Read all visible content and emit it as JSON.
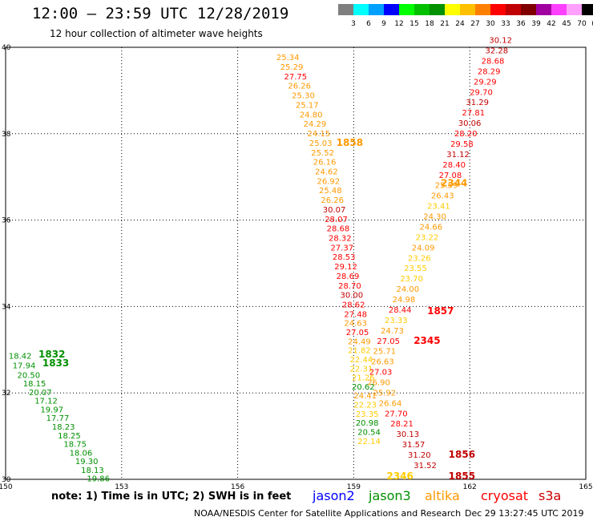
{
  "header": {
    "title": "12:00 – 23:59 UTC 12/28/2019",
    "subtitle": "12 hour collection of altimeter wave heights"
  },
  "legend_scale": {
    "labels": [
      "3",
      "6",
      "9",
      "12",
      "15",
      "18",
      "21",
      "24",
      "27",
      "30",
      "33",
      "36",
      "39",
      "42",
      "45",
      "70",
      "(ft)"
    ],
    "colors": [
      "#7f7f7f",
      "#00ffff",
      "#00a0ff",
      "#0000ff",
      "#00ff00",
      "#00c000",
      "#009000",
      "#ffff00",
      "#ffc000",
      "#ff8000",
      "#ff0000",
      "#c00000",
      "#800000",
      "#a000a0",
      "#ff40ff",
      "#ffa0ff",
      "#000000"
    ]
  },
  "bottom": {
    "note": "note:  1) Time is in UTC;  2) SWH is in feet",
    "satellites": [
      {
        "name": "jason2",
        "color": "#0000ff"
      },
      {
        "name": "jason3",
        "color": "#009000"
      },
      {
        "name": "altika",
        "color": "#ff9900"
      },
      {
        "name": "cryosat",
        "color": "#ff0000"
      },
      {
        "name": "s3a",
        "color": "#cc0000"
      }
    ],
    "credit": "NOAA/NESDIS Center for Satellite Applications and Research",
    "timestamp": "Dec 29 13:27:45 UTC 2019"
  },
  "chart_data": {
    "type": "scatter",
    "xlim": [
      150,
      165
    ],
    "ylim": [
      30,
      40
    ],
    "x_ticks": [
      "150",
      "153",
      "156",
      "159",
      "162",
      "165"
    ],
    "y_ticks": [
      "30",
      "32",
      "34",
      "36",
      "38",
      "40"
    ],
    "grid": true,
    "color_scale": {
      "thresholds": [
        21,
        24,
        27,
        30,
        33
      ],
      "colors": [
        "#009000",
        "#ffcc00",
        "#ff9900",
        "#ff0000",
        "#c00000"
      ]
    },
    "tracks": [
      {
        "values": [
          [
            150.08,
            32.79,
            18.42
          ],
          [
            150.18,
            32.57,
            17.94
          ],
          [
            150.3,
            32.35,
            20.5
          ],
          [
            150.45,
            32.15,
            18.15
          ],
          [
            150.6,
            31.95,
            20.07
          ],
          [
            150.75,
            31.75,
            17.12
          ],
          [
            150.9,
            31.55,
            19.97
          ],
          [
            151.05,
            31.35,
            17.77
          ],
          [
            151.2,
            31.15,
            18.23
          ],
          [
            151.35,
            30.95,
            18.25
          ],
          [
            151.5,
            30.75,
            18.75
          ],
          [
            151.65,
            30.55,
            18.06
          ],
          [
            151.8,
            30.35,
            19.3
          ],
          [
            151.95,
            30.15,
            18.13
          ],
          [
            152.1,
            29.95,
            19.86
          ]
        ],
        "time_labels": [
          {
            "x": 150.85,
            "y": 32.82,
            "time": "1832"
          },
          {
            "x": 150.95,
            "y": 32.62,
            "time": "1833"
          }
        ]
      },
      {
        "values": [
          [
            157.0,
            39.7,
            25.34
          ],
          [
            157.1,
            39.48,
            25.29
          ],
          [
            157.2,
            39.26,
            27.75
          ],
          [
            157.3,
            39.04,
            26.26
          ],
          [
            157.4,
            38.82,
            25.3
          ],
          [
            157.5,
            38.6,
            25.17
          ],
          [
            157.6,
            38.38,
            24.8
          ],
          [
            157.7,
            38.16,
            24.29
          ],
          [
            157.8,
            37.94,
            24.15
          ],
          [
            157.85,
            37.72,
            25.03
          ],
          [
            157.9,
            37.5,
            25.52
          ],
          [
            157.95,
            37.28,
            26.16
          ],
          [
            158.0,
            37.06,
            24.62
          ],
          [
            158.05,
            36.84,
            26.92
          ],
          [
            158.1,
            36.62,
            25.48
          ],
          [
            158.15,
            36.4,
            26.26
          ],
          [
            158.2,
            36.18,
            30.07
          ],
          [
            158.25,
            35.96,
            28.07
          ],
          [
            158.3,
            35.74,
            28.68
          ],
          [
            158.35,
            35.52,
            28.32
          ],
          [
            158.4,
            35.3,
            27.37
          ],
          [
            158.45,
            35.08,
            28.53
          ],
          [
            158.5,
            34.86,
            29.12
          ],
          [
            158.55,
            34.64,
            28.69
          ],
          [
            158.6,
            34.42,
            28.7
          ],
          [
            158.65,
            34.2,
            30.0
          ],
          [
            158.7,
            33.98,
            28.62
          ],
          [
            158.75,
            33.76,
            27.48
          ],
          [
            158.75,
            33.55,
            24.63
          ],
          [
            158.8,
            33.34,
            27.05
          ],
          [
            158.85,
            33.13,
            24.49
          ],
          [
            158.85,
            32.92,
            21.82
          ],
          [
            158.9,
            32.71,
            22.44
          ],
          [
            158.9,
            32.5,
            22.31
          ],
          [
            158.95,
            32.29,
            21.26
          ],
          [
            158.95,
            32.08,
            20.62
          ],
          [
            159.0,
            31.87,
            24.41
          ],
          [
            159.0,
            31.66,
            22.23
          ],
          [
            159.05,
            31.45,
            23.35
          ],
          [
            159.05,
            31.24,
            20.98
          ],
          [
            159.1,
            31.03,
            20.54
          ],
          [
            159.1,
            30.82,
            22.14
          ]
        ],
        "time_labels": [
          {
            "x": 158.55,
            "y": 37.72,
            "time": "1858"
          },
          {
            "x": 159.85,
            "y": 30.0,
            "time": "2346"
          }
        ]
      },
      {
        "values": [
          [
            162.5,
            40.1,
            30.12
          ],
          [
            162.4,
            39.86,
            32.28
          ],
          [
            162.3,
            39.62,
            28.68
          ],
          [
            162.2,
            39.38,
            28.29
          ],
          [
            162.1,
            39.14,
            29.29
          ],
          [
            162.0,
            38.9,
            29.7
          ],
          [
            161.9,
            38.66,
            31.29
          ],
          [
            161.8,
            38.42,
            27.81
          ],
          [
            161.7,
            38.18,
            30.06
          ],
          [
            161.6,
            37.94,
            28.2
          ],
          [
            161.5,
            37.7,
            29.58
          ],
          [
            161.4,
            37.46,
            31.12
          ],
          [
            161.3,
            37.22,
            28.4
          ],
          [
            161.2,
            36.98,
            27.08
          ],
          [
            161.1,
            36.74,
            25.59
          ],
          [
            161.0,
            36.5,
            26.43
          ],
          [
            160.9,
            36.26,
            23.41
          ],
          [
            160.8,
            36.02,
            24.3
          ],
          [
            160.7,
            35.78,
            24.66
          ],
          [
            160.6,
            35.54,
            23.22
          ],
          [
            160.5,
            35.3,
            24.09
          ],
          [
            160.4,
            35.06,
            23.26
          ],
          [
            160.3,
            34.82,
            23.55
          ],
          [
            160.2,
            34.58,
            23.7
          ],
          [
            160.1,
            34.34,
            24.0
          ],
          [
            160.0,
            34.1,
            24.98
          ],
          [
            159.9,
            33.86,
            28.44
          ],
          [
            159.8,
            33.62,
            23.33
          ],
          [
            159.7,
            33.38,
            24.73
          ],
          [
            159.6,
            33.14,
            27.05
          ],
          [
            159.5,
            32.9,
            25.71
          ],
          [
            159.45,
            32.66,
            26.63
          ],
          [
            159.4,
            32.42,
            27.03
          ],
          [
            159.35,
            32.18,
            26.9
          ],
          [
            159.5,
            31.94,
            25.92
          ],
          [
            159.65,
            31.7,
            26.64
          ],
          [
            159.8,
            31.46,
            27.7
          ],
          [
            159.95,
            31.22,
            28.21
          ],
          [
            160.1,
            30.98,
            30.13
          ],
          [
            160.25,
            30.74,
            31.57
          ],
          [
            160.4,
            30.5,
            31.2
          ],
          [
            160.55,
            30.26,
            31.52
          ]
        ],
        "time_labels": [
          {
            "x": 161.25,
            "y": 36.78,
            "time": "2344"
          },
          {
            "x": 160.9,
            "y": 33.82,
            "time": "1857"
          },
          {
            "x": 160.55,
            "y": 33.14,
            "time": "2345"
          },
          {
            "x": 161.45,
            "y": 30.5,
            "time": "1856"
          },
          {
            "x": 161.45,
            "y": 30.0,
            "time": "1855"
          }
        ]
      }
    ]
  }
}
